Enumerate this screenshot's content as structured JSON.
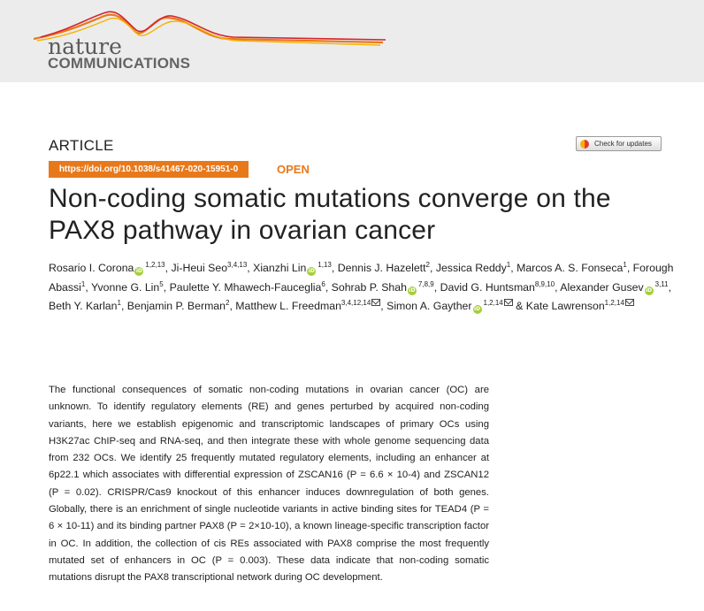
{
  "header": {
    "journal_word1": "nature",
    "journal_word2": "COMMUNICATIONS",
    "brand_orange": "#e8791b",
    "wave_colors": [
      "#e8791b",
      "#d6232d",
      "#f5b300"
    ]
  },
  "article": {
    "type": "ARTICLE",
    "doi": "https://doi.org/10.1038/s41467-020-15951-0",
    "access": "OPEN",
    "check_updates": "Check for updates",
    "title": "Non-coding somatic mutations converge on the PAX8 pathway in ovarian cancer"
  },
  "authors": [
    {
      "name": "Rosario I. Corona",
      "aff": "1,2,13",
      "orcid": true,
      "corresponding": false,
      "sep": ", "
    },
    {
      "name": "Ji-Heui Seo",
      "aff": "3,4,13",
      "orcid": false,
      "corresponding": false,
      "sep": ", "
    },
    {
      "name": "Xianzhi Lin",
      "aff": "1,13",
      "orcid": true,
      "corresponding": false,
      "sep": ", "
    },
    {
      "name": "Dennis J. Hazelett",
      "aff": "2",
      "orcid": false,
      "corresponding": false,
      "sep": ", "
    },
    {
      "name": "Jessica Reddy",
      "aff": "1",
      "orcid": false,
      "corresponding": false,
      "sep": ", "
    },
    {
      "name": "Marcos A. S. Fonseca",
      "aff": "1",
      "orcid": false,
      "corresponding": false,
      "sep": ", "
    },
    {
      "name": "Forough Abassi",
      "aff": "1",
      "orcid": false,
      "corresponding": false,
      "sep": ", "
    },
    {
      "name": "Yvonne G. Lin",
      "aff": "5",
      "orcid": false,
      "corresponding": false,
      "sep": ", "
    },
    {
      "name": "Paulette Y. Mhawech-Fauceglia",
      "aff": "6",
      "orcid": false,
      "corresponding": false,
      "sep": ", "
    },
    {
      "name": "Sohrab P. Shah",
      "aff": "7,8,9",
      "orcid": true,
      "corresponding": false,
      "sep": ", "
    },
    {
      "name": "David G. Huntsman",
      "aff": "8,9,10",
      "orcid": false,
      "corresponding": false,
      "sep": ", "
    },
    {
      "name": "Alexander Gusev",
      "aff": "3,11",
      "orcid": true,
      "corresponding": false,
      "sep": ", "
    },
    {
      "name": "Beth Y. Karlan",
      "aff": "1",
      "orcid": false,
      "corresponding": false,
      "sep": ", "
    },
    {
      "name": "Benjamin P. Berman",
      "aff": "2",
      "orcid": false,
      "corresponding": false,
      "sep": ", "
    },
    {
      "name": "Matthew L. Freedman",
      "aff": "3,4,12,14",
      "orcid": false,
      "corresponding": true,
      "sep": ", "
    },
    {
      "name": "Simon A. Gayther",
      "aff": "1,2,14",
      "orcid": true,
      "corresponding": true,
      "sep": " & "
    },
    {
      "name": "Kate Lawrenson",
      "aff": "1,2,14",
      "orcid": false,
      "corresponding": true,
      "sep": ""
    }
  ],
  "abstract": "The functional consequences of somatic non-coding mutations in ovarian cancer (OC) are unknown. To identify regulatory elements (RE) and genes perturbed by acquired non-coding variants, here we establish epigenomic and transcriptomic landscapes of primary OCs using H3K27ac ChIP-seq and RNA-seq, and then integrate these with whole genome sequencing data from 232 OCs. We identify 25 frequently mutated regulatory elements, including an enhancer at 6p22.1 which associates with differential expression of ZSCAN16 (P = 6.6 × 10-4) and ZSCAN12 (P = 0.02). CRISPR/Cas9 knockout of this enhancer induces downregulation of both genes. Globally, there is an enrichment of single nucleotide variants in active binding sites for TEAD4 (P = 6 × 10-11) and its binding partner PAX8 (P = 2×10-10), a known lineage-specific transcription factor in OC. In addition, the collection of cis REs associated with PAX8 comprise the most frequently mutated set of enhancers in OC (P = 0.003). These data indicate that non-coding somatic mutations disrupt the PAX8 transcriptional network during OC development."
}
